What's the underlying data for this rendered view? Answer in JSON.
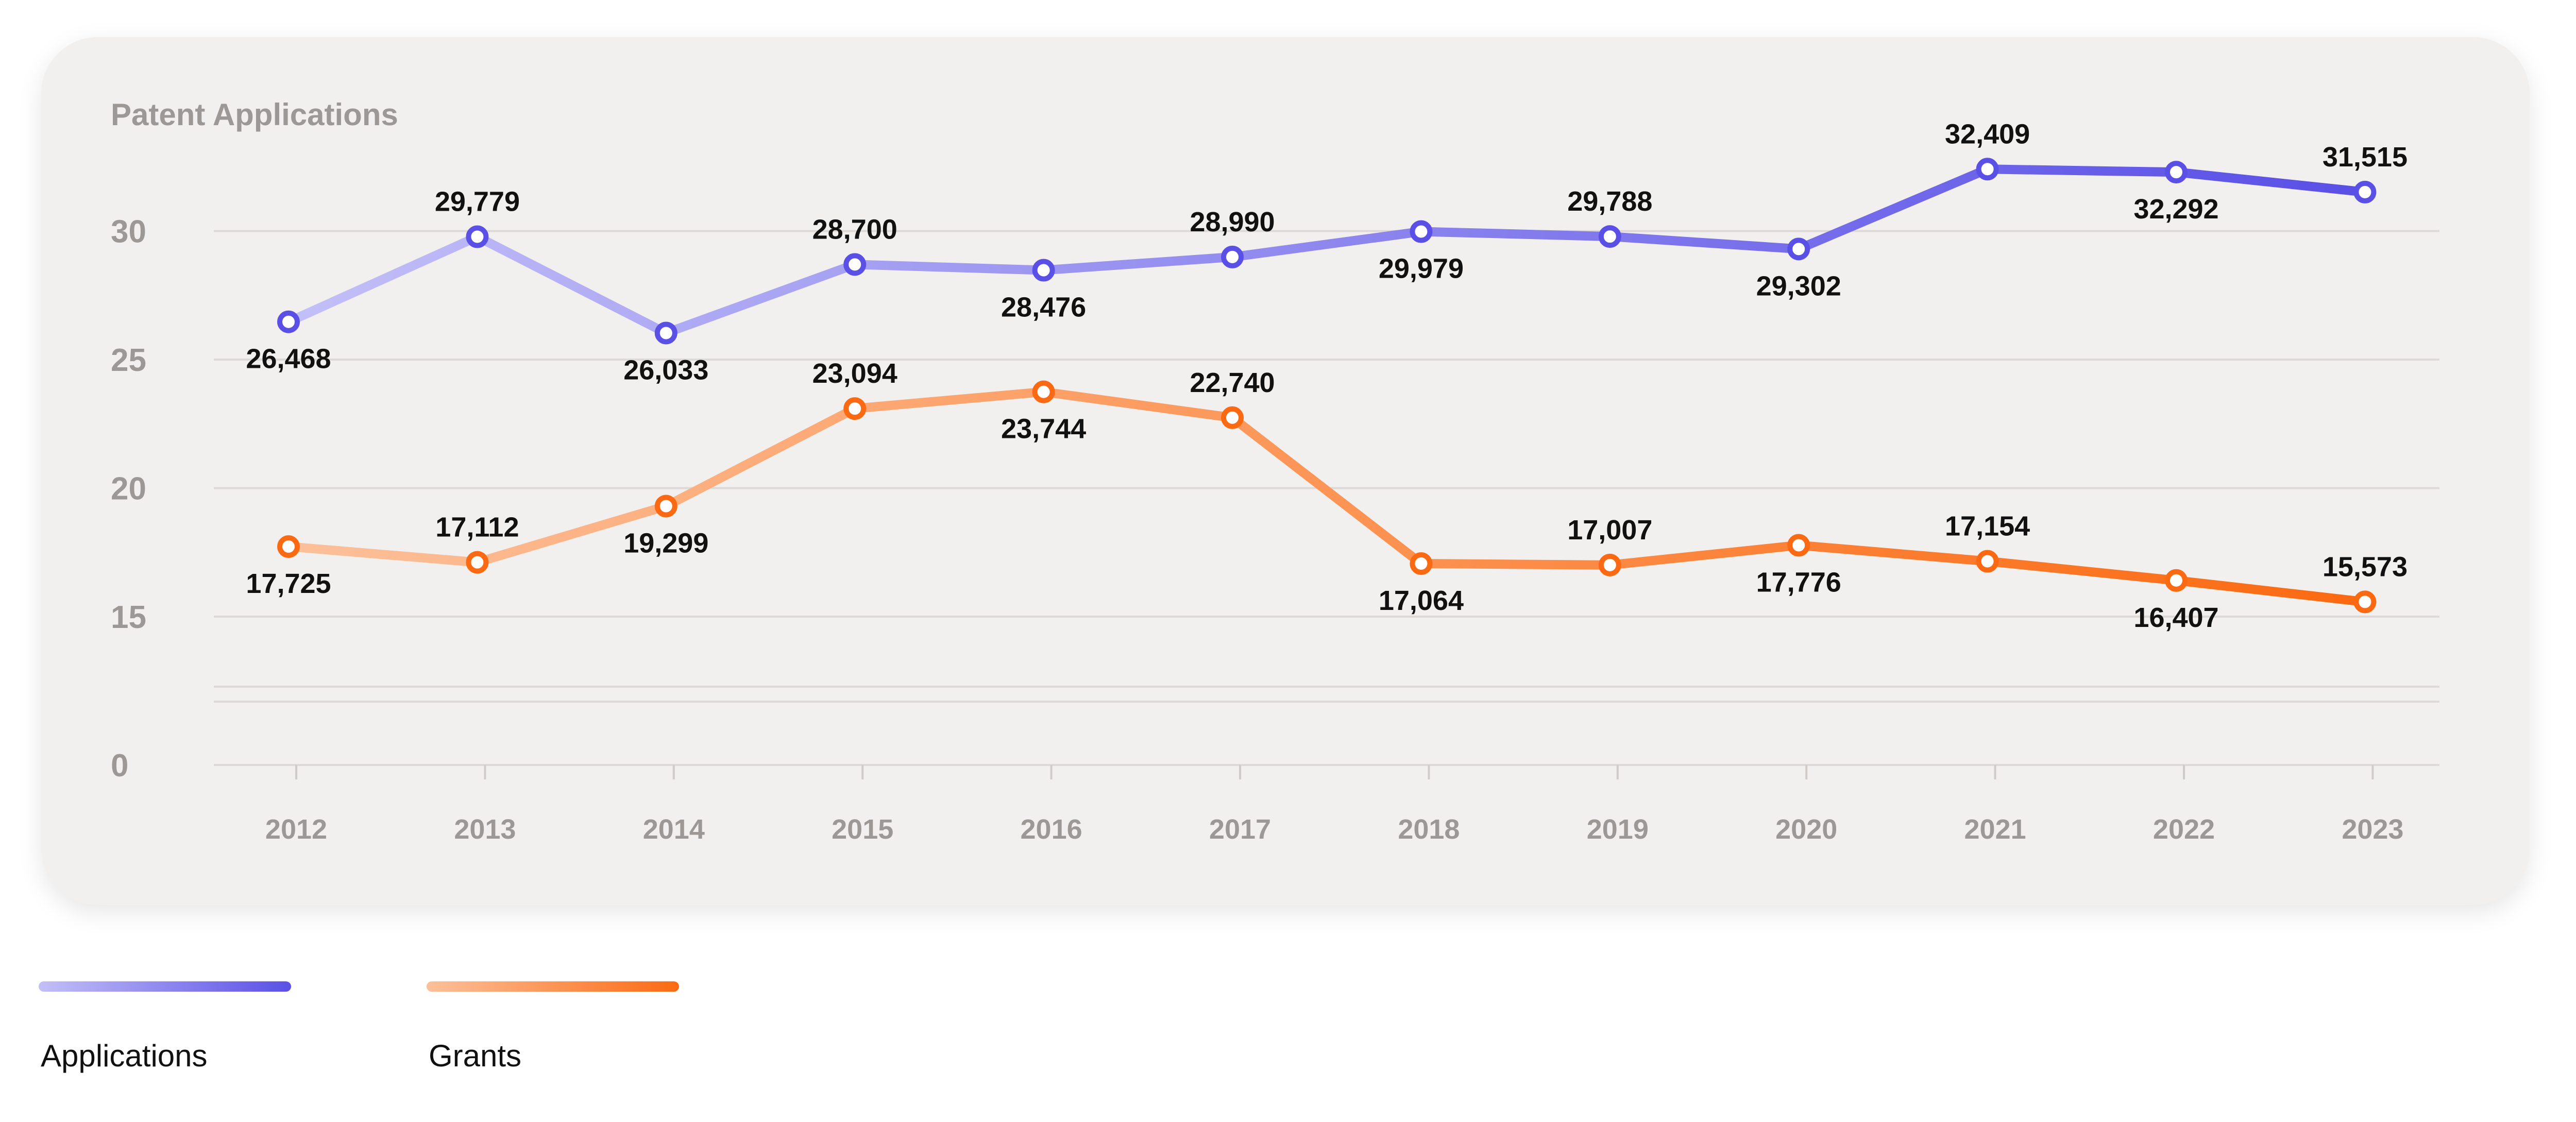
{
  "chart_data": {
    "type": "line",
    "title": "Patent Applications",
    "categories": [
      "2012",
      "2013",
      "2014",
      "2015",
      "2016",
      "2017",
      "2018",
      "2019",
      "2020",
      "2021",
      "2022",
      "2023"
    ],
    "yticks": [
      "0",
      "15",
      "20",
      "25",
      "30"
    ],
    "series": [
      {
        "name": "Applications",
        "values": [
          26.468,
          29.779,
          26.033,
          28.7,
          28.476,
          28.99,
          29.979,
          29.788,
          29.302,
          32.409,
          32.292,
          31.515
        ],
        "labels": [
          "26,468",
          "29,779",
          "26,033",
          "28,700",
          "28,476",
          "28,990",
          "29,979",
          "29,788",
          "29,302",
          "32,409",
          "32,292",
          "31,515"
        ],
        "label_pos": [
          "below",
          "above",
          "below",
          "above",
          "below",
          "above",
          "below",
          "above",
          "below",
          "above",
          "below",
          "above"
        ],
        "color_start": "#c3bff7",
        "color_end": "#5a50e6"
      },
      {
        "name": "Grants",
        "values": [
          17.725,
          17.112,
          19.299,
          23.094,
          23.744,
          22.74,
          17.064,
          17.007,
          17.776,
          17.154,
          16.407,
          15.573
        ],
        "labels": [
          "17,725",
          "17,112",
          "19,299",
          "23,094",
          "23,744",
          "22,740",
          "17,064",
          "17,007",
          "17,776",
          "17,154",
          "16,407",
          "15,573"
        ],
        "label_pos": [
          "below",
          "above",
          "below",
          "above",
          "below",
          "above",
          "below",
          "above",
          "below",
          "above",
          "below",
          "above"
        ],
        "color_start": "#fcc09a",
        "color_end": "#fb6a12"
      }
    ],
    "grid": true,
    "legend_position": "bottom-left"
  }
}
